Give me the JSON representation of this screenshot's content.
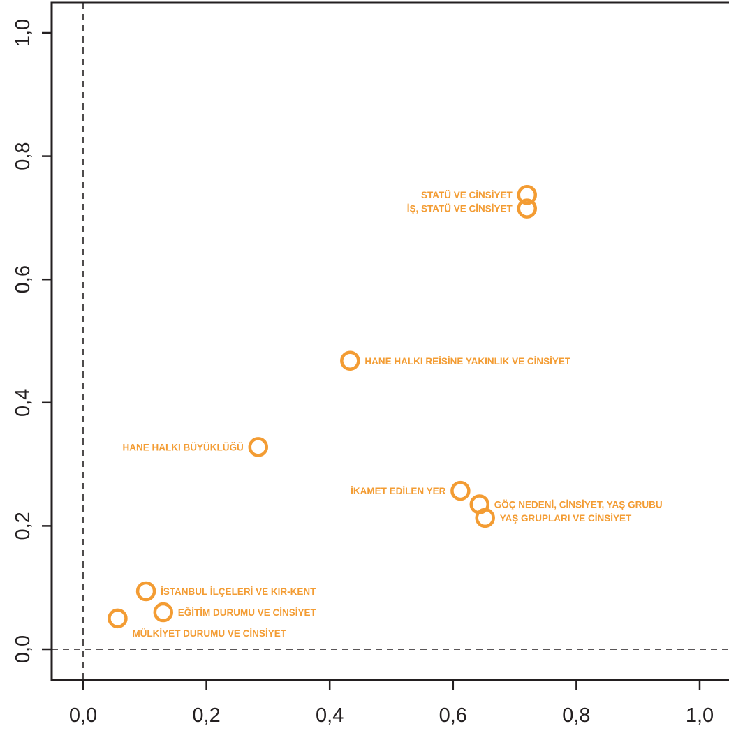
{
  "chart_data": {
    "type": "scatter",
    "title": "",
    "xlabel": "",
    "ylabel": "",
    "xlim": [
      -0.05,
      1.05
    ],
    "ylim": [
      -0.05,
      1.05
    ],
    "x_ticks": [
      0.0,
      0.2,
      0.4,
      0.6,
      0.8,
      1.0
    ],
    "y_ticks": [
      0.0,
      0.2,
      0.4,
      0.6,
      0.8,
      1.0
    ],
    "x_tick_labels": [
      "0,0",
      "0,2",
      "0,4",
      "0,6",
      "0,8",
      "1,0"
    ],
    "y_tick_labels": [
      "0,0",
      "0,2",
      "0,4",
      "0,6",
      "0,8",
      "1,0"
    ],
    "reference_lines": {
      "x": 0.0,
      "y": 0.0,
      "style": "dashed"
    },
    "grid": false,
    "legend": "none",
    "marker": "open-circle",
    "point_color": "#f39c33",
    "points": [
      {
        "label": "STATÜ VE CİNSİYET",
        "x": 0.72,
        "y": 0.737,
        "label_side": "left"
      },
      {
        "label": "İŞ, STATÜ VE CİNSİYET",
        "x": 0.72,
        "y": 0.715,
        "label_side": "left"
      },
      {
        "label": "HANE HALKI REİSİNE YAKINLIK VE CİNSİYET",
        "x": 0.433,
        "y": 0.468,
        "label_side": "right"
      },
      {
        "label": "HANE HALKI BÜYÜKLÜĞÜ",
        "x": 0.284,
        "y": 0.328,
        "label_side": "left"
      },
      {
        "label": "İKAMET EDİLEN YER",
        "x": 0.612,
        "y": 0.257,
        "label_side": "left"
      },
      {
        "label": "GÖÇ NEDENİ, CİNSİYET, YAŞ GRUBU",
        "x": 0.643,
        "y": 0.235,
        "label_side": "right"
      },
      {
        "label": "YAŞ GRUPLARI VE CİNSİYET",
        "x": 0.652,
        "y": 0.213,
        "label_side": "right"
      },
      {
        "label": "İSTANBUL İLÇELERİ VE KIR-KENT",
        "x": 0.102,
        "y": 0.094,
        "label_side": "right"
      },
      {
        "label": "EĞİTİM DURUMU VE CİNSİYET",
        "x": 0.13,
        "y": 0.06,
        "label_side": "right"
      },
      {
        "label": "MÜLKİYET DURUMU VE CİNSİYET",
        "x": 0.056,
        "y": 0.05,
        "label_side": "right-below"
      }
    ]
  }
}
